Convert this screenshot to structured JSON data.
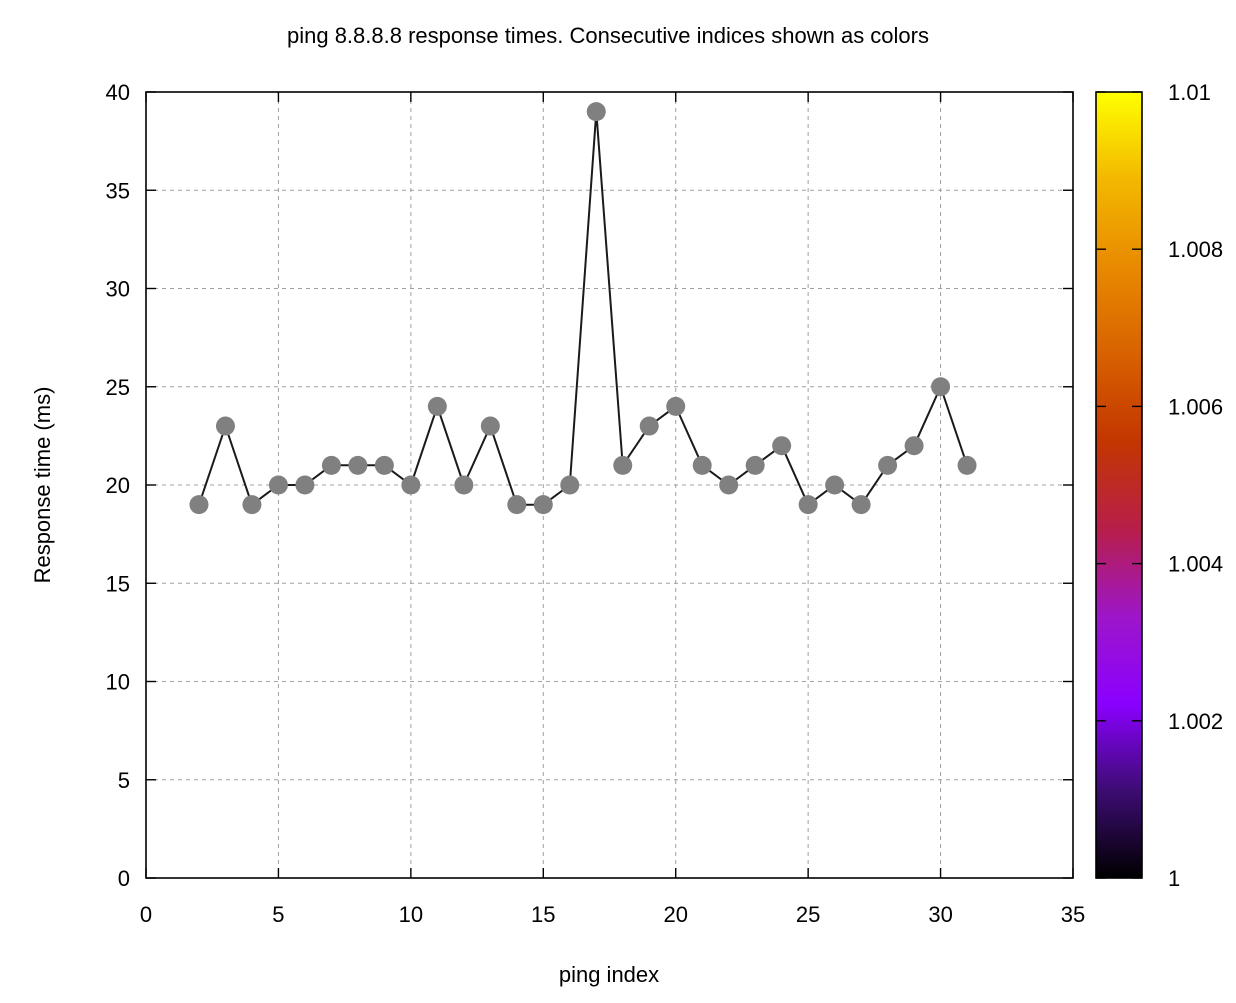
{
  "chart_data": {
    "type": "line",
    "title": "ping 8.8.8.8 response times. Consecutive indices shown as colors",
    "xlabel": "ping index",
    "ylabel": "Response time (ms)",
    "xlim": [
      0,
      35
    ],
    "ylim": [
      0,
      40
    ],
    "x_ticks": [
      "0",
      "5",
      "10",
      "15",
      "20",
      "25",
      "30",
      "35"
    ],
    "y_ticks": [
      "0",
      "5",
      "10",
      "15",
      "20",
      "25",
      "30",
      "35",
      "40"
    ],
    "grid": true,
    "series": [
      {
        "x": [
          2,
          3,
          4,
          5,
          6,
          7,
          8,
          9,
          10,
          11,
          12,
          13,
          14,
          15,
          16,
          17,
          18,
          19,
          20,
          21,
          22,
          23,
          24,
          25,
          26,
          27,
          28,
          29,
          30,
          31
        ],
        "values": [
          19,
          23,
          19,
          20,
          20,
          21,
          21,
          21,
          20,
          24,
          20,
          23,
          19,
          19,
          20,
          39,
          21,
          23,
          24,
          21,
          20,
          21,
          22,
          19,
          20,
          19,
          21,
          22,
          25,
          21
        ],
        "color": "#808080"
      }
    ],
    "colorbar": {
      "range": [
        1,
        1.01
      ],
      "ticks": [
        "1",
        "1.002",
        "1.004",
        "1.006",
        "1.008",
        "1.01"
      ],
      "palette": [
        "#000000",
        "#3d0c73",
        "#8a00ff",
        "#9d16c8",
        "#b81e4a",
        "#c33600",
        "#d86200",
        "#e88a00",
        "#f3b800",
        "#ffff00"
      ]
    }
  }
}
